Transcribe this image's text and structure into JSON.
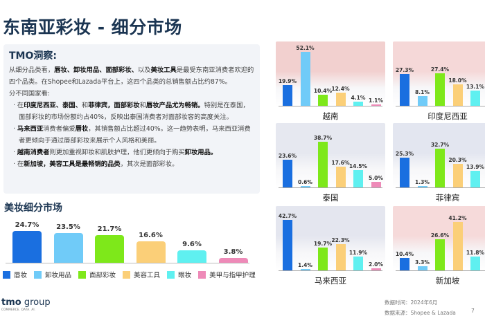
{
  "header": {
    "title": "东南亚彩妆 - 细分市场"
  },
  "insight": {
    "heading": "TMO洞察:",
    "p1": [
      {
        "t": "从细分品类看，"
      },
      {
        "t": "唇妆、卸妆用品、面部彩妆、",
        "b": 1
      },
      {
        "t": "以及"
      },
      {
        "t": "美妆工具",
        "b": 1
      },
      {
        "t": "是最受东南亚消费者欢迎的四个品类。在Shopee和Lazada平台上，这四个品类的总销售额占比约87%。"
      }
    ],
    "p2": [
      {
        "t": "分不同国家看:"
      }
    ],
    "bullets": [
      [
        {
          "t": "· 在"
        },
        {
          "t": "印度尼西亚、泰国、",
          "b": 1
        },
        {
          "t": "和"
        },
        {
          "t": "菲律宾，面部彩妆",
          "b": 1
        },
        {
          "t": "和"
        },
        {
          "t": "唇妆产品尤为畅销。",
          "b": 1
        },
        {
          "t": "特别是在泰国，面部彩妆的市场份额约占40%，反映出泰国消费者对面部妆容的高度关注。"
        }
      ],
      [
        {
          "t": "· "
        },
        {
          "t": "马来西亚",
          "b": 1
        },
        {
          "t": "消费者偏爱"
        },
        {
          "t": "唇妆",
          "b": 1
        },
        {
          "t": "，其销售额占比超过40%。这一趋势表明，马来西亚消费者更倾向于通过唇部彩妆来展示个人风格和美丽。"
        }
      ],
      [
        {
          "t": "· "
        },
        {
          "t": "越南消费者",
          "b": 1
        },
        {
          "t": "则更加重视卸妆和肌肤护理，他们更倾向于购买"
        },
        {
          "t": "卸妆用品。",
          "b": 1
        }
      ],
      [
        {
          "t": "· 在"
        },
        {
          "t": "新加坡，美容工具是最畅销的品类",
          "b": 1
        },
        {
          "t": "，其次是面部彩妆。"
        }
      ]
    ]
  },
  "chart_data": [
    {
      "type": "bar",
      "title": "美妆细分市场",
      "categories": [
        "唇妆",
        "卸妆用品",
        "面部彩妆",
        "美容工具",
        "眼妆",
        "美甲与指甲护理"
      ],
      "values": [
        24.7,
        23.5,
        21.7,
        16.6,
        9.6,
        3.8
      ],
      "value_labels": [
        "24.7%",
        "23.5%",
        "21.7%",
        "16.6%",
        "9.6%",
        "3.8%"
      ],
      "colors": [
        "#1a6fe0",
        "#70cbf8",
        "#7ee81a",
        "#fbcf78",
        "#5ff0f0",
        "#ee8ab8"
      ],
      "legend": "bottom"
    },
    {
      "type": "bar",
      "title": "越南",
      "values": [
        19.9,
        52.1,
        10.4,
        12.4,
        4.1,
        1.1
      ],
      "value_labels": [
        "19.9%",
        "52.1%",
        "10.4%",
        "12.4%",
        "4.1%",
        "1.1%"
      ],
      "flag": "#f2d0cf"
    },
    {
      "type": "bar",
      "title": "印度尼西亚",
      "values": [
        27.3,
        8.1,
        27.4,
        18.0,
        13.1
      ],
      "value_labels": [
        "27.3%",
        "8.1%",
        "27.4%",
        "18.0%",
        "13.1%"
      ],
      "flag": "#f5d8d8"
    },
    {
      "type": "bar",
      "title": "泰国",
      "values": [
        23.6,
        0.6,
        38.7,
        17.6,
        14.5,
        5.0
      ],
      "value_labels": [
        "23.6%",
        "0.6%",
        "38.7%",
        "17.6%",
        "14.5%",
        "5.0%"
      ],
      "flag": "#e6e8f0"
    },
    {
      "type": "bar",
      "title": "菲律宾",
      "values": [
        25.3,
        1.3,
        32.7,
        20.3,
        13.9
      ],
      "value_labels": [
        "25.3%",
        "1.3%",
        "32.7%",
        "20.3%",
        "13.9%"
      ],
      "flag": "#e3e6f0"
    },
    {
      "type": "bar",
      "title": "马来西亚",
      "values": [
        42.7,
        1.4,
        19.7,
        22.3,
        11.9,
        2.0
      ],
      "value_labels": [
        "42.7%",
        "1.4%",
        "19.7%",
        "22.3%",
        "11.9%",
        "2.0%"
      ],
      "flag": "#e4e6ef"
    },
    {
      "type": "bar",
      "title": "新加坡",
      "values": [
        10.4,
        3.3,
        26.6,
        41.2,
        11.8
      ],
      "value_labels": [
        "10.4%",
        "3.3%",
        "26.6%",
        "41.2%",
        "11.8%"
      ],
      "flag": "#f6dada"
    }
  ],
  "footer": {
    "date": "数据时间：2024年6月",
    "source": "数据来源：Shopee & Lazada",
    "page": "7"
  },
  "logo": {
    "name": "tmo group",
    "tagline": "COMMERCE. DATA. AI."
  }
}
